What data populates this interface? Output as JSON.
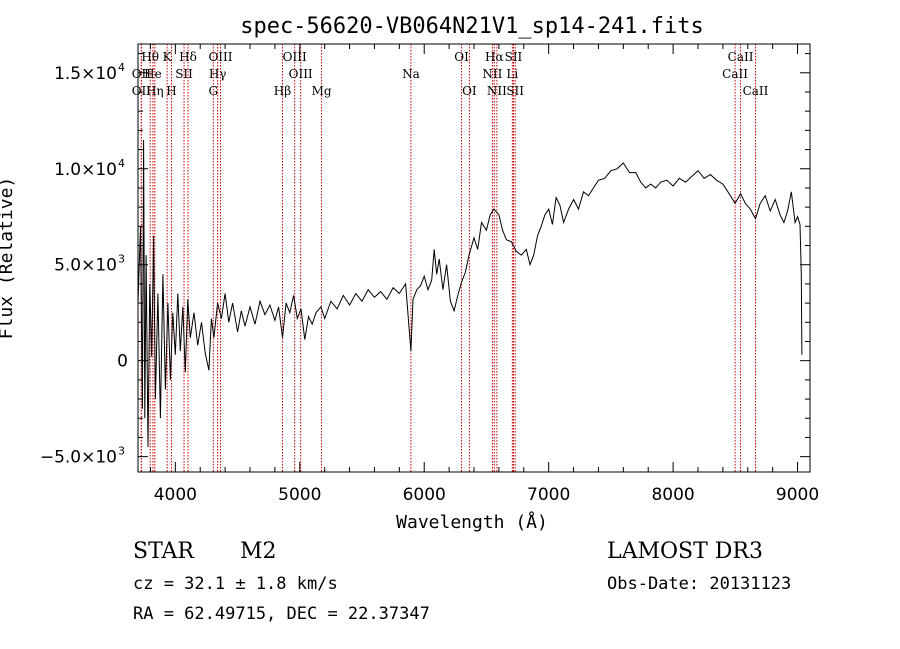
{
  "chart_data": {
    "type": "line",
    "title": "spec-56620-VB064N21V1_sp14-241.fits",
    "xlabel": "Wavelength (Å)",
    "ylabel": "Flux (Relative)",
    "xlim": [
      3700,
      9100
    ],
    "ylim": [
      -5800,
      16500
    ],
    "x_ticks": [
      4000,
      5000,
      6000,
      7000,
      8000,
      9000
    ],
    "x_tick_labels": [
      "4000",
      "5000",
      "6000",
      "7000",
      "8000",
      "9000"
    ],
    "y_ticks": [
      {
        "value": -5000,
        "mantissa": "−5.0×10",
        "exp": "3"
      },
      {
        "value": 0,
        "mantissa": "0",
        "exp": ""
      },
      {
        "value": 5000,
        "mantissa": "5.0×10",
        "exp": "3"
      },
      {
        "value": 10000,
        "mantissa": "1.0×10",
        "exp": "4"
      },
      {
        "value": 15000,
        "mantissa": "1.5×10",
        "exp": "4"
      }
    ],
    "series": [
      {
        "color": "#000000",
        "points": [
          [
            3700,
            3000
          ],
          [
            3720,
            7000
          ],
          [
            3735,
            -2500
          ],
          [
            3745,
            11500
          ],
          [
            3755,
            -3000
          ],
          [
            3765,
            5500
          ],
          [
            3780,
            -4500
          ],
          [
            3795,
            4000
          ],
          [
            3810,
            200
          ],
          [
            3825,
            6500
          ],
          [
            3840,
            -2000
          ],
          [
            3860,
            3500
          ],
          [
            3880,
            -3000
          ],
          [
            3900,
            4500
          ],
          [
            3920,
            -1500
          ],
          [
            3940,
            3000
          ],
          [
            3960,
            -1000
          ],
          [
            3980,
            2500
          ],
          [
            4000,
            300
          ],
          [
            4020,
            3500
          ],
          [
            4040,
            500
          ],
          [
            4060,
            2800
          ],
          [
            4080,
            -600
          ],
          [
            4100,
            3200
          ],
          [
            4120,
            1200
          ],
          [
            4150,
            2500
          ],
          [
            4180,
            800
          ],
          [
            4210,
            2000
          ],
          [
            4240,
            400
          ],
          [
            4270,
            -500
          ],
          [
            4290,
            2200
          ],
          [
            4310,
            1200
          ],
          [
            4340,
            3000
          ],
          [
            4370,
            2200
          ],
          [
            4400,
            3500
          ],
          [
            4430,
            2000
          ],
          [
            4460,
            3000
          ],
          [
            4500,
            1500
          ],
          [
            4530,
            2600
          ],
          [
            4560,
            1800
          ],
          [
            4600,
            2800
          ],
          [
            4640,
            1900
          ],
          [
            4680,
            3100
          ],
          [
            4720,
            2400
          ],
          [
            4760,
            2900
          ],
          [
            4800,
            2100
          ],
          [
            4830,
            2800
          ],
          [
            4861,
            1200
          ],
          [
            4890,
            3000
          ],
          [
            4920,
            2500
          ],
          [
            4950,
            3400
          ],
          [
            4980,
            2200
          ],
          [
            5010,
            2700
          ],
          [
            5040,
            1100
          ],
          [
            5070,
            2300
          ],
          [
            5100,
            1900
          ],
          [
            5130,
            2500
          ],
          [
            5170,
            2800
          ],
          [
            5200,
            2200
          ],
          [
            5250,
            3100
          ],
          [
            5300,
            2700
          ],
          [
            5350,
            3400
          ],
          [
            5400,
            2900
          ],
          [
            5450,
            3500
          ],
          [
            5500,
            3100
          ],
          [
            5550,
            3700
          ],
          [
            5600,
            3300
          ],
          [
            5650,
            3600
          ],
          [
            5700,
            3200
          ],
          [
            5750,
            3800
          ],
          [
            5800,
            3500
          ],
          [
            5850,
            4000
          ],
          [
            5893,
            500
          ],
          [
            5910,
            3200
          ],
          [
            5940,
            3700
          ],
          [
            5970,
            3900
          ],
          [
            6000,
            4400
          ],
          [
            6030,
            3700
          ],
          [
            6060,
            4200
          ],
          [
            6080,
            5800
          ],
          [
            6100,
            4500
          ],
          [
            6120,
            5300
          ],
          [
            6150,
            3700
          ],
          [
            6180,
            5000
          ],
          [
            6210,
            3100
          ],
          [
            6240,
            2600
          ],
          [
            6270,
            3400
          ],
          [
            6300,
            4100
          ],
          [
            6330,
            4600
          ],
          [
            6360,
            5500
          ],
          [
            6400,
            6400
          ],
          [
            6430,
            5800
          ],
          [
            6460,
            7200
          ],
          [
            6500,
            6800
          ],
          [
            6530,
            7600
          ],
          [
            6560,
            7900
          ],
          [
            6600,
            7600
          ],
          [
            6630,
            6800
          ],
          [
            6660,
            6300
          ],
          [
            6700,
            6200
          ],
          [
            6740,
            5700
          ],
          [
            6780,
            5500
          ],
          [
            6820,
            5800
          ],
          [
            6850,
            5000
          ],
          [
            6880,
            5500
          ],
          [
            6910,
            6500
          ],
          [
            6940,
            7000
          ],
          [
            6970,
            7600
          ],
          [
            7000,
            7900
          ],
          [
            7030,
            7100
          ],
          [
            7060,
            8500
          ],
          [
            7090,
            8100
          ],
          [
            7120,
            7200
          ],
          [
            7160,
            7900
          ],
          [
            7200,
            8400
          ],
          [
            7240,
            7900
          ],
          [
            7280,
            8800
          ],
          [
            7320,
            8600
          ],
          [
            7360,
            9000
          ],
          [
            7400,
            9400
          ],
          [
            7450,
            9500
          ],
          [
            7500,
            9900
          ],
          [
            7550,
            10000
          ],
          [
            7600,
            10300
          ],
          [
            7650,
            9800
          ],
          [
            7700,
            9800
          ],
          [
            7740,
            9300
          ],
          [
            7780,
            9000
          ],
          [
            7820,
            9200
          ],
          [
            7860,
            9000
          ],
          [
            7900,
            9300
          ],
          [
            7950,
            9400
          ],
          [
            8000,
            9100
          ],
          [
            8050,
            9500
          ],
          [
            8100,
            9300
          ],
          [
            8150,
            9600
          ],
          [
            8200,
            9900
          ],
          [
            8250,
            9500
          ],
          [
            8300,
            9700
          ],
          [
            8350,
            9400
          ],
          [
            8400,
            9200
          ],
          [
            8440,
            8800
          ],
          [
            8498,
            8200
          ],
          [
            8542,
            8700
          ],
          [
            8580,
            8200
          ],
          [
            8620,
            7900
          ],
          [
            8662,
            7400
          ],
          [
            8700,
            8200
          ],
          [
            8740,
            8600
          ],
          [
            8780,
            7800
          ],
          [
            8820,
            8400
          ],
          [
            8860,
            7600
          ],
          [
            8890,
            7200
          ],
          [
            8920,
            7800
          ],
          [
            8950,
            8800
          ],
          [
            8980,
            7200
          ],
          [
            9000,
            7500
          ],
          [
            9020,
            7100
          ],
          [
            9030,
            4500
          ],
          [
            9035,
            300
          ]
        ]
      }
    ],
    "spectral_lines": [
      {
        "label": "Hθ",
        "wl": 3798,
        "row": 0
      },
      {
        "label": "OII",
        "wl": 3727,
        "row": 1
      },
      {
        "label": "OII",
        "wl": 3727,
        "row": 2
      },
      {
        "label": "He",
        "wl": 3820,
        "row": 1
      },
      {
        "label": "Hη",
        "wl": 3835,
        "row": 2
      },
      {
        "label": "K",
        "wl": 3934,
        "row": 0
      },
      {
        "label": "H",
        "wl": 3969,
        "row": 2
      },
      {
        "label": "SII",
        "wl": 4070,
        "row": 1
      },
      {
        "label": "Hδ",
        "wl": 4102,
        "row": 0
      },
      {
        "label": "OIII",
        "wl": 4363,
        "row": 0
      },
      {
        "label": "Hγ",
        "wl": 4340,
        "row": 1
      },
      {
        "label": "G",
        "wl": 4305,
        "row": 2
      },
      {
        "label": "OIII",
        "wl": 4959,
        "row": 0
      },
      {
        "label": "OIII",
        "wl": 5007,
        "row": 1
      },
      {
        "label": "Hβ",
        "wl": 4861,
        "row": 2
      },
      {
        "label": "Mg",
        "wl": 5175,
        "row": 2
      },
      {
        "label": "Na",
        "wl": 5893,
        "row": 1
      },
      {
        "label": "OI",
        "wl": 6300,
        "row": 0
      },
      {
        "label": "OI",
        "wl": 6363,
        "row": 2
      },
      {
        "label": "Hα",
        "wl": 6563,
        "row": 0
      },
      {
        "label": "SII",
        "wl": 6717,
        "row": 0
      },
      {
        "label": "NII",
        "wl": 6548,
        "row": 1
      },
      {
        "label": "Li",
        "wl": 6708,
        "row": 1
      },
      {
        "label": "NII",
        "wl": 6584,
        "row": 2
      },
      {
        "label": "SII",
        "wl": 6731,
        "row": 2
      },
      {
        "label": "CaII",
        "wl": 8542,
        "row": 0
      },
      {
        "label": "CaII",
        "wl": 8498,
        "row": 1
      },
      {
        "label": "CaII",
        "wl": 8662,
        "row": 2
      }
    ],
    "colors": {
      "spectrum": "#000000",
      "marker": "#cc0000",
      "axes": "#000000"
    }
  },
  "info": {
    "class": "STAR",
    "subclass": "M2",
    "survey": "LAMOST DR3",
    "cz": "cz = 32.1 ± 1.8 km/s",
    "obs_date": "Obs-Date: 20131123",
    "radec": "RA =  62.49715, DEC =  22.37347"
  }
}
